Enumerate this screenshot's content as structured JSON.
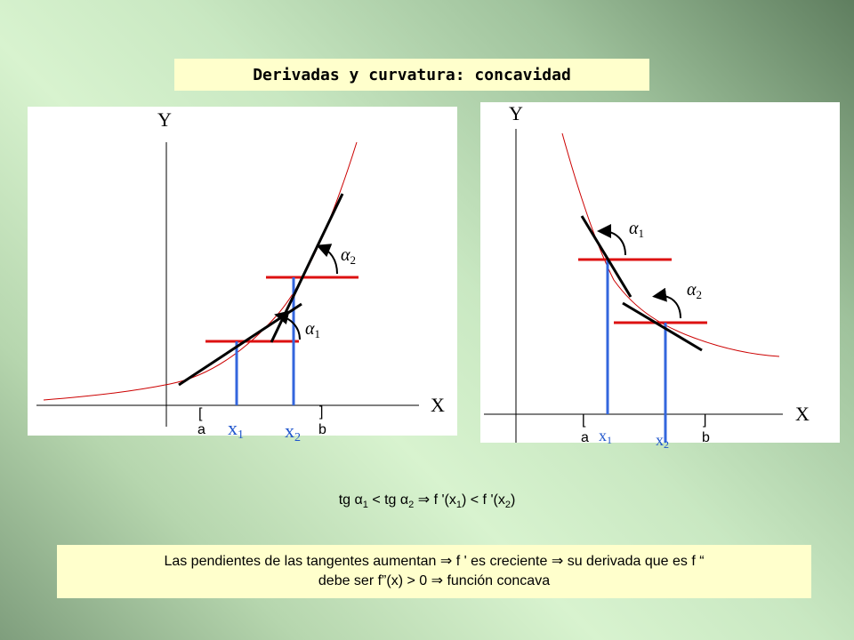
{
  "title": "Derivadas y curvatura: concavidad",
  "left_graph": {
    "y_axis_label": "Y",
    "x_axis_label": "X",
    "bracket_open": "[",
    "bracket_close": "]",
    "interval_start": "a",
    "interval_end": "b",
    "point_1": "x",
    "point_1_sub": "1",
    "point_2": "x",
    "point_2_sub": "2",
    "angle_1": "α",
    "angle_1_sub": "1",
    "angle_2": "α",
    "angle_2_sub": "2"
  },
  "right_graph": {
    "y_axis_label": "Y",
    "x_axis_label": "X",
    "bracket_open": "[",
    "bracket_close": "]",
    "interval_start": "a",
    "interval_end": "b",
    "point_1": "x",
    "point_1_sub": "1",
    "point_2": "x",
    "point_2_sub": "2",
    "angle_1": "α",
    "angle_1_sub": "1",
    "angle_2": "α",
    "angle_2_sub": "2"
  },
  "formula": {
    "p1": "tg α",
    "s1": "1",
    "p2": " < tg α",
    "s2": "2",
    "p3": "  ⇒  f '(x",
    "s3": "1",
    "p4": ") < f '(x",
    "s4": "2",
    "p5": ")"
  },
  "conclusion": {
    "line1": "Las pendientes de las tangentes aumentan ⇒ f ' es creciente ⇒  su derivada que es f “",
    "line2": "debe ser f”(x) > 0 ⇒ función concava"
  },
  "colors": {
    "curve": "#cc0000",
    "horizontal_line": "#dd1111",
    "vertical_line": "#3366dd",
    "tangent": "#000000",
    "point_label": "#1f55cc",
    "box_background": "#ffffcc"
  }
}
